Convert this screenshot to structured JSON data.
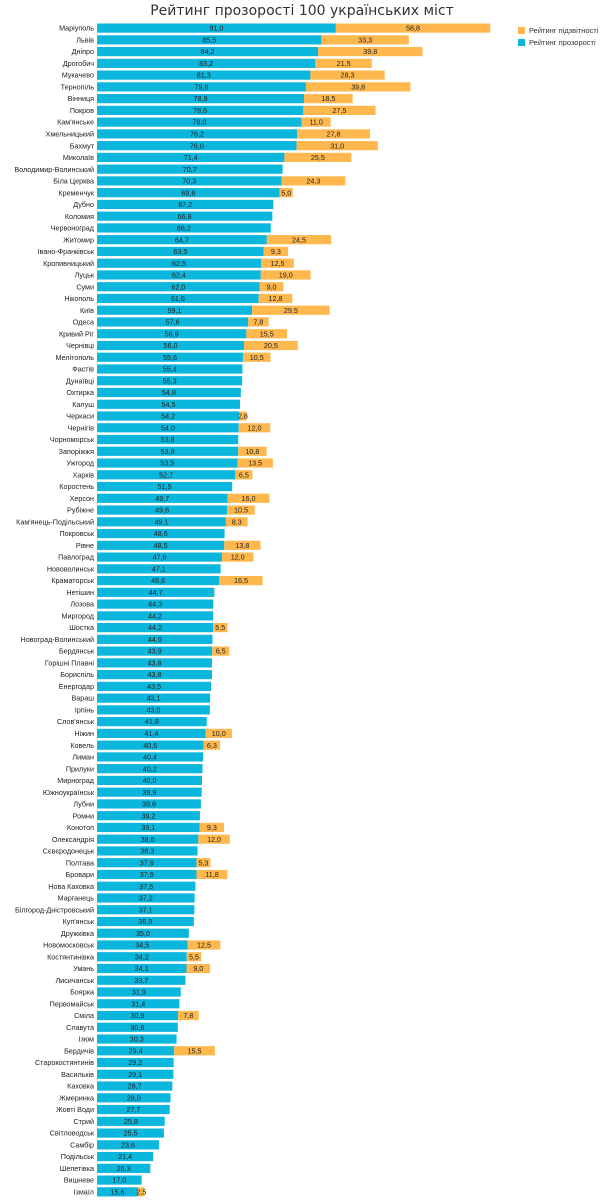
{
  "title": "Рейтинг прозорості 100 українських міст",
  "legend": [
    {
      "label": "Рейтинг підзвітності",
      "color": "#ffb84d"
    },
    {
      "label": "Рейтинг прозорості",
      "color": "#0bb7dd"
    }
  ],
  "chart_data": {
    "type": "bar",
    "orientation": "horizontal",
    "stacked": true,
    "title": "Рейтинг прозорості 100 українських міст",
    "categories": [
      "Маріуполь",
      "Львів",
      "Дніпро",
      "Дрогобич",
      "Мукачево",
      "Тернопіль",
      "Вінниця",
      "Покров",
      "Кам'янське",
      "Хмельницький",
      "Бахмут",
      "Миколаїв",
      "Володимир-Волинський",
      "Біла Церква",
      "Кременчук",
      "Дубно",
      "Коломия",
      "Червоноград",
      "Житомир",
      "Івано-Франківськ",
      "Кропивницький",
      "Луцьк",
      "Суми",
      "Нікополь",
      "Київ",
      "Одеса",
      "Кривий Ріг",
      "Чернівці",
      "Мелітополь",
      "Фастів",
      "Дунаївці",
      "Охтирка",
      "Калуш",
      "Черкаси",
      "Чернігів",
      "Чорноморськ",
      "Запоріжжя",
      "Ужгород",
      "Харків",
      "Коростень",
      "Херсон",
      "Рубіжне",
      "Кам'янець-Подільський",
      "Покровськ",
      "Рівне",
      "Павлоград",
      "Нововолинськ",
      "Краматорськ",
      "Нетішин",
      "Лозова",
      "Миргород",
      "Шостка",
      "Новоград-Волинський",
      "Бердянськ",
      "Горішні Плавні",
      "Бориспіль",
      "Енергодар",
      "Вараш",
      "Ірпінь",
      "Слов'янськ",
      "Ніжин",
      "Ковель",
      "Лиман",
      "Прилуки",
      "Мирноград",
      "Южноукраїнськ",
      "Лубни",
      "Ромни",
      "Конотоп",
      "Олександрія",
      "Сєвєродонецьк",
      "Полтава",
      "Бровари",
      "Нова Каховка",
      "Марганець",
      "Білгород-Дністровський",
      "Куп'янськ",
      "Дружківка",
      "Новомосковськ",
      "Костянтинівка",
      "Умань",
      "Лисичанськ",
      "Боярка",
      "Первомайськ",
      "Сміла",
      "Славута",
      "Ізюм",
      "Бердичів",
      "Старокостянтинів",
      "Васильків",
      "Каховка",
      "Жмеринка",
      "Жовті Води",
      "Стрий",
      "Світловодськ",
      "Самбір",
      "Подільськ",
      "Шепетівка",
      "Вишневе",
      "Ізмаїл"
    ],
    "series": [
      {
        "name": "Рейтинг прозорості",
        "color": "#0bb7dd",
        "values": [
          91.0,
          85.5,
          84.2,
          83.2,
          81.3,
          79.6,
          78.9,
          78.6,
          78.0,
          76.2,
          76.0,
          71.4,
          70.7,
          70.3,
          69.6,
          67.2,
          66.8,
          66.2,
          64.7,
          63.5,
          62.5,
          62.4,
          62.0,
          61.6,
          59.1,
          57.6,
          56.9,
          56.0,
          55.6,
          55.4,
          55.3,
          54.8,
          54.5,
          54.2,
          54.0,
          53.8,
          53.8,
          53.5,
          52.7,
          51.5,
          49.7,
          49.6,
          49.1,
          48.6,
          48.5,
          47.6,
          47.1,
          46.6,
          44.7,
          44.3,
          44.2,
          44.2,
          44.0,
          43.9,
          43.8,
          43.8,
          43.5,
          43.1,
          43.0,
          41.8,
          41.4,
          40.6,
          40.4,
          40.2,
          40.0,
          39.9,
          39.6,
          39.2,
          39.1,
          38.6,
          38.3,
          37.9,
          37.9,
          37.5,
          37.2,
          37.1,
          36.9,
          35.0,
          34.5,
          34.2,
          34.1,
          33.7,
          31.9,
          31.4,
          30.9,
          30.8,
          30.3,
          29.4,
          29.2,
          29.1,
          28.7,
          28.0,
          27.7,
          25.8,
          25.5,
          23.6,
          21.4,
          20.3,
          17.0,
          15.6
        ],
        "labels": [
          "91,0",
          "85,5",
          "84,2",
          "83,2",
          "81,3",
          "79,6",
          "78,9",
          "78,6",
          "78,0",
          "76,2",
          "76,0",
          "71,4",
          "70,7",
          "70,3",
          "69,6",
          "67,2",
          "66,8",
          "66,2",
          "64,7",
          "63,5",
          "62,5",
          "62,4",
          "62,0",
          "61,6",
          "59,1",
          "57,6",
          "56,9",
          "56,0",
          "55,6",
          "55,4",
          "55,3",
          "54,8",
          "54,5",
          "54,2",
          "54,0",
          "53,8",
          "53,8",
          "53,5",
          "52,7",
          "51,5",
          "49,7",
          "49,6",
          "49,1",
          "48,6",
          "48,5",
          "47,6",
          "47,1",
          "46,6",
          "44,7",
          "44,3",
          "44,2",
          "44,2",
          "44,0",
          "43,9",
          "43,8",
          "43,8",
          "43,5",
          "43,1",
          "43,0",
          "41,8",
          "41,4",
          "40,6",
          "40,4",
          "40,2",
          "40,0",
          "39,9",
          "39,6",
          "39,2",
          "39,1",
          "38,6",
          "38,3",
          "37,9",
          "37,9",
          "37,5",
          "37,2",
          "37,1",
          "36,9",
          "35,0",
          "34,5",
          "34,2",
          "34,1",
          "33,7",
          "31,9",
          "31,4",
          "30,9",
          "30,8",
          "30,3",
          "29,4",
          "29,2",
          "29,1",
          "28,7",
          "28,0",
          "27,7",
          "25,8",
          "25,5",
          "23,6",
          "21,4",
          "20,3",
          "17,0",
          "15,6"
        ]
      },
      {
        "name": "Рейтинг підзвітності",
        "color": "#ffb84d",
        "values": [
          58.8,
          33.3,
          39.8,
          21.5,
          28.3,
          39.8,
          18.5,
          27.5,
          11.0,
          27.8,
          31.0,
          25.5,
          0,
          24.3,
          5.0,
          0,
          0,
          0,
          24.5,
          9.3,
          12.5,
          19.0,
          9.0,
          12.8,
          29.5,
          7.8,
          15.5,
          20.5,
          10.5,
          0,
          0,
          0,
          0,
          2.8,
          12.0,
          0,
          10.8,
          13.5,
          6.5,
          0,
          16.0,
          10.5,
          8.3,
          0,
          13.8,
          12.0,
          0,
          16.5,
          0,
          0,
          0,
          5.5,
          0,
          6.5,
          0,
          0,
          0,
          0,
          0,
          0,
          10.0,
          6.3,
          0,
          0,
          0,
          0,
          0,
          0,
          9.3,
          12.0,
          0,
          5.3,
          11.8,
          0,
          0,
          0,
          0,
          0,
          12.5,
          5.5,
          9.0,
          0,
          0,
          0,
          7.8,
          0,
          0,
          15.5,
          0,
          0,
          0,
          0,
          0,
          0,
          0,
          0,
          0,
          0,
          0,
          2.5
        ],
        "labels": [
          "58,8",
          "33,3",
          "39,8",
          "21,5",
          "28,3",
          "39,8",
          "18,5",
          "27,5",
          "11,0",
          "27,8",
          "31,0",
          "25,5",
          "",
          "24,3",
          "5,0",
          "",
          "",
          "",
          "24,5",
          "9,3",
          "12,5",
          "19,0",
          "9,0",
          "12,8",
          "29,5",
          "7,8",
          "15,5",
          "20,5",
          "10,5",
          "",
          "",
          "",
          "",
          "2,8",
          "12,0",
          "",
          "10,8",
          "13,5",
          "6,5",
          "",
          "16,0",
          "10,5",
          "8,3",
          "",
          "13,8",
          "12,0",
          "",
          "16,5",
          "",
          "",
          "",
          "5,5",
          "",
          "6,5",
          "",
          "",
          "",
          "",
          "",
          "",
          "10,0",
          "6,3",
          "",
          "",
          "",
          "",
          "",
          "",
          "9,3",
          "12,0",
          "",
          "5,3",
          "11,8",
          "",
          "",
          "",
          "",
          "",
          "12,5",
          "5,5",
          "9,0",
          "",
          "",
          "",
          "7,8",
          "",
          "",
          "15,5",
          "",
          "",
          "",
          "",
          "",
          "",
          "",
          "",
          "",
          "",
          "",
          "2,5"
        ]
      }
    ],
    "xlabel": "",
    "ylabel": "",
    "xlim": [
      0,
      150
    ],
    "grid": false,
    "legend_position": "top-right"
  }
}
